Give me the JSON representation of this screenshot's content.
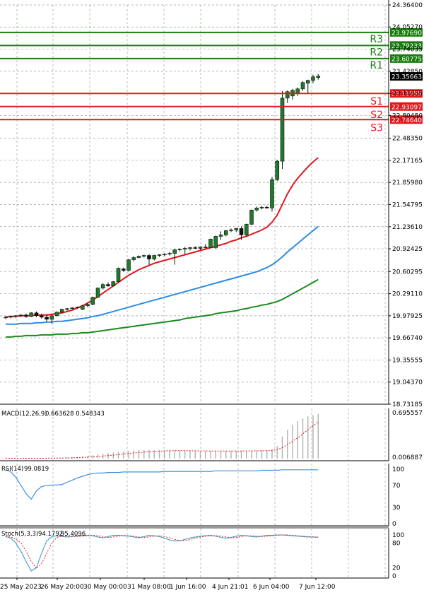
{
  "colors": {
    "bull": "#1f7a2e",
    "bear": "#111111",
    "ma_fast": "#e5161a",
    "ma_mid": "#2b8ce6",
    "ma_slow": "#1c8a1c",
    "support": "#e0191c",
    "resistance": "#1a7d10",
    "grid": "#9aa0a6",
    "macd_hist": "#b0b0b0",
    "macd_signal": "#e0191c",
    "rsi": "#3d8fe0",
    "stoch_main": "#3aa0c8",
    "stoch_signal": "#e0191c"
  },
  "chart_data": {
    "type": "candlestick",
    "price_axis": {
      "labels": [
        "24.36400",
        "24.05270",
        "23.74035",
        "23.42850",
        "23.11555",
        "22.80480",
        "22.48350",
        "22.17165",
        "21.85980",
        "21.54795",
        "21.23610",
        "20.92425",
        "20.60295",
        "20.29110",
        "19.97925",
        "19.66740",
        "19.35555",
        "19.04370",
        "18.73185"
      ],
      "ylim": [
        18.73185,
        24.364
      ]
    },
    "time_axis": {
      "labels": [
        "25 May 2023",
        "26 May 20:00",
        "30 May 00:00",
        "31 May 08:00",
        "1 Jun 16:00",
        "4 Jun 21:01",
        "6 Jun 04:00",
        "7 Jun 12:00"
      ]
    },
    "current_price": "23.35663",
    "levels": {
      "resistance": [
        {
          "name": "R3",
          "value": "23.97690"
        },
        {
          "name": "R2",
          "value": "23.79233"
        },
        {
          "name": "R1",
          "value": "23.60775"
        }
      ],
      "support": [
        {
          "name": "S1",
          "value": "23.11555"
        },
        {
          "name": "S2",
          "value": "22.93097"
        },
        {
          "name": "S3",
          "value": "22.74640"
        }
      ]
    },
    "candles": [
      [
        19.95,
        19.97,
        19.93,
        19.96
      ],
      [
        19.96,
        19.98,
        19.94,
        19.97
      ],
      [
        19.97,
        19.99,
        19.95,
        19.98
      ],
      [
        19.98,
        20.0,
        19.96,
        19.99
      ],
      [
        19.99,
        20.01,
        19.95,
        19.97
      ],
      [
        19.97,
        20.03,
        19.96,
        20.02
      ],
      [
        20.02,
        20.04,
        19.96,
        19.98
      ],
      [
        19.98,
        20.01,
        19.94,
        19.96
      ],
      [
        19.96,
        20.0,
        19.9,
        19.93
      ],
      [
        19.93,
        20.0,
        19.87,
        19.98
      ],
      [
        19.98,
        20.04,
        19.97,
        20.03
      ],
      [
        20.03,
        20.08,
        20.02,
        20.07
      ],
      [
        20.07,
        20.09,
        20.05,
        20.08
      ],
      [
        20.08,
        20.1,
        20.07,
        20.09
      ],
      [
        20.09,
        20.11,
        20.08,
        20.1
      ],
      [
        20.07,
        20.13,
        20.06,
        20.12
      ],
      [
        20.12,
        20.16,
        20.1,
        20.14
      ],
      [
        20.14,
        20.25,
        20.13,
        20.24
      ],
      [
        20.24,
        20.38,
        20.23,
        20.37
      ],
      [
        20.37,
        20.44,
        20.35,
        20.42
      ],
      [
        20.42,
        20.45,
        20.39,
        20.4
      ],
      [
        20.4,
        20.47,
        20.39,
        20.46
      ],
      [
        20.46,
        20.66,
        20.45,
        20.65
      ],
      [
        20.64,
        20.66,
        20.6,
        20.62
      ],
      [
        20.62,
        20.78,
        20.61,
        20.77
      ],
      [
        20.77,
        20.82,
        20.75,
        20.8
      ],
      [
        20.8,
        20.83,
        20.79,
        20.82
      ],
      [
        20.82,
        20.84,
        20.8,
        20.83
      ],
      [
        20.83,
        20.85,
        20.7,
        20.78
      ],
      [
        20.78,
        20.84,
        20.76,
        20.83
      ],
      [
        20.83,
        20.85,
        20.81,
        20.84
      ],
      [
        20.84,
        20.86,
        20.82,
        20.85
      ],
      [
        20.85,
        20.88,
        20.83,
        20.86
      ],
      [
        20.86,
        20.92,
        20.7,
        20.91
      ],
      [
        20.91,
        20.93,
        20.89,
        20.92
      ],
      [
        20.92,
        20.95,
        20.85,
        20.93
      ],
      [
        20.93,
        20.95,
        20.9,
        20.94
      ],
      [
        20.94,
        20.96,
        20.92,
        20.93
      ],
      [
        20.93,
        20.96,
        20.91,
        20.95
      ],
      [
        20.95,
        20.99,
        20.93,
        20.94
      ],
      [
        20.94,
        21.07,
        20.93,
        21.06
      ],
      [
        20.94,
        21.11,
        20.92,
        21.1
      ],
      [
        21.1,
        21.17,
        21.05,
        21.12
      ],
      [
        21.12,
        21.19,
        21.1,
        21.18
      ],
      [
        21.18,
        21.21,
        21.16,
        21.19
      ],
      [
        21.19,
        21.22,
        21.16,
        21.21
      ],
      [
        21.21,
        21.24,
        21.05,
        21.12
      ],
      [
        21.12,
        21.28,
        21.1,
        21.27
      ],
      [
        21.27,
        21.48,
        21.26,
        21.47
      ],
      [
        21.47,
        21.52,
        21.45,
        21.5
      ],
      [
        21.5,
        21.53,
        21.48,
        21.51
      ],
      [
        21.51,
        21.53,
        21.49,
        21.5
      ],
      [
        21.5,
        21.94,
        21.45,
        21.9
      ],
      [
        21.9,
        22.18,
        21.88,
        22.16
      ],
      [
        22.16,
        23.15,
        22.05,
        23.05
      ],
      [
        23.05,
        23.16,
        22.98,
        23.14
      ],
      [
        23.08,
        23.18,
        23.03,
        23.16
      ],
      [
        23.12,
        23.2,
        23.08,
        23.18
      ],
      [
        23.18,
        23.29,
        23.15,
        23.27
      ],
      [
        23.26,
        23.31,
        23.11,
        23.3
      ],
      [
        23.3,
        23.38,
        23.26,
        23.35
      ],
      [
        23.34,
        23.39,
        23.31,
        23.36
      ]
    ],
    "ma_fast": [
      19.96,
      19.97,
      19.97,
      19.98,
      19.98,
      19.98,
      19.99,
      19.99,
      19.99,
      20.0,
      20.01,
      20.02,
      20.04,
      20.06,
      20.09,
      20.12,
      20.16,
      20.2,
      20.25,
      20.3,
      20.35,
      20.4,
      20.45,
      20.5,
      20.55,
      20.59,
      20.63,
      20.66,
      20.69,
      20.72,
      20.74,
      20.76,
      20.78,
      20.8,
      20.82,
      20.84,
      20.86,
      20.88,
      20.9,
      20.92,
      20.94,
      20.96,
      20.98,
      21.0,
      21.03,
      21.05,
      21.08,
      21.1,
      21.13,
      21.16,
      21.19,
      21.23,
      21.3,
      21.4,
      21.55,
      21.7,
      21.82,
      21.92,
      22.0,
      22.08,
      22.15,
      22.21
    ],
    "ma_mid": [
      19.86,
      19.86,
      19.86,
      19.87,
      19.87,
      19.87,
      19.88,
      19.88,
      19.89,
      19.89,
      19.9,
      19.9,
      19.91,
      19.92,
      19.93,
      19.94,
      19.95,
      19.97,
      19.98,
      20.0,
      20.02,
      20.04,
      20.06,
      20.08,
      20.1,
      20.12,
      20.14,
      20.16,
      20.18,
      20.2,
      20.22,
      20.24,
      20.26,
      20.28,
      20.3,
      20.32,
      20.34,
      20.36,
      20.38,
      20.4,
      20.42,
      20.44,
      20.46,
      20.48,
      20.5,
      20.52,
      20.54,
      20.56,
      20.58,
      20.6,
      20.63,
      20.66,
      20.7,
      20.75,
      20.81,
      20.88,
      20.94,
      21.0,
      21.06,
      21.12,
      21.18,
      21.24
    ],
    "ma_slow": [
      19.68,
      19.68,
      19.69,
      19.69,
      19.7,
      19.7,
      19.7,
      19.71,
      19.71,
      19.71,
      19.72,
      19.72,
      19.72,
      19.73,
      19.73,
      19.74,
      19.74,
      19.75,
      19.76,
      19.77,
      19.78,
      19.79,
      19.8,
      19.81,
      19.82,
      19.83,
      19.84,
      19.85,
      19.86,
      19.87,
      19.88,
      19.89,
      19.9,
      19.91,
      19.92,
      19.94,
      19.95,
      19.96,
      19.97,
      19.98,
      19.99,
      20.01,
      20.02,
      20.03,
      20.04,
      20.05,
      20.07,
      20.08,
      20.1,
      20.11,
      20.13,
      20.14,
      20.16,
      20.18,
      20.21,
      20.25,
      20.29,
      20.33,
      20.37,
      20.41,
      20.45,
      20.49
    ],
    "macd": {
      "label": "MACD(12,26,9)",
      "values_text": "0.663628 0.548343",
      "axis_labels": [
        "0.695557",
        "0.006887"
      ],
      "range": [
        0,
        0.695557
      ],
      "hist": [
        0.005,
        0.005,
        0.005,
        0.005,
        0.005,
        0.005,
        0.005,
        0.006,
        0.007,
        0.008,
        0.01,
        0.013,
        0.017,
        0.022,
        0.028,
        0.035,
        0.043,
        0.052,
        0.062,
        0.072,
        0.082,
        0.092,
        0.102,
        0.11,
        0.117,
        0.122,
        0.125,
        0.127,
        0.128,
        0.128,
        0.127,
        0.126,
        0.124,
        0.122,
        0.12,
        0.118,
        0.116,
        0.114,
        0.113,
        0.112,
        0.112,
        0.113,
        0.114,
        0.115,
        0.116,
        0.117,
        0.118,
        0.118,
        0.119,
        0.12,
        0.122,
        0.125,
        0.14,
        0.19,
        0.33,
        0.43,
        0.5,
        0.56,
        0.6,
        0.63,
        0.65,
        0.664
      ],
      "signal": [
        0.005,
        0.005,
        0.005,
        0.005,
        0.005,
        0.005,
        0.005,
        0.005,
        0.006,
        0.006,
        0.007,
        0.008,
        0.01,
        0.012,
        0.015,
        0.018,
        0.022,
        0.027,
        0.032,
        0.038,
        0.045,
        0.052,
        0.06,
        0.068,
        0.076,
        0.084,
        0.091,
        0.097,
        0.103,
        0.108,
        0.112,
        0.115,
        0.117,
        0.118,
        0.118,
        0.118,
        0.117,
        0.116,
        0.115,
        0.114,
        0.113,
        0.113,
        0.113,
        0.113,
        0.113,
        0.114,
        0.114,
        0.115,
        0.115,
        0.116,
        0.117,
        0.118,
        0.122,
        0.133,
        0.165,
        0.21,
        0.26,
        0.31,
        0.37,
        0.43,
        0.49,
        0.548
      ]
    },
    "rsi": {
      "label": "RSI(14)",
      "value": "99.0819",
      "axis_labels": [
        "100",
        "70",
        "30",
        "0"
      ],
      "values": [
        100,
        95,
        85,
        70,
        55,
        45,
        60,
        68,
        70,
        71,
        71,
        72,
        76,
        80,
        84,
        87,
        90,
        92,
        93,
        93,
        94,
        94,
        94,
        95,
        95,
        95,
        95,
        95,
        95,
        95,
        95,
        96,
        96,
        96,
        96,
        96,
        96,
        96,
        96,
        96,
        96,
        97,
        97,
        97,
        97,
        97,
        97,
        97,
        97,
        97,
        98,
        98,
        98,
        98,
        99,
        99,
        99,
        99,
        99,
        99,
        99,
        99
      ]
    },
    "stoch": {
      "label": "Stoch(5,3,3)",
      "value1": "94.1792",
      "value2": "95.4096",
      "axis_labels": [
        "100",
        "80",
        "20",
        "0"
      ],
      "main": [
        96,
        92,
        80,
        60,
        35,
        12,
        20,
        55,
        85,
        96,
        98,
        96,
        95,
        96,
        98,
        99,
        99,
        98,
        95,
        93,
        96,
        99,
        99,
        98,
        97,
        95,
        93,
        96,
        99,
        98,
        96,
        92,
        88,
        85,
        86,
        89,
        93,
        95,
        97,
        98,
        99,
        97,
        94,
        92,
        94,
        97,
        99,
        98,
        96,
        95,
        97,
        99,
        99,
        100,
        100,
        99,
        98,
        97,
        96,
        95,
        95,
        94
      ],
      "signal": [
        96,
        95,
        90,
        80,
        60,
        35,
        18,
        30,
        55,
        80,
        94,
        97,
        97,
        96,
        96,
        97,
        98,
        99,
        98,
        96,
        94,
        95,
        97,
        99,
        98,
        97,
        95,
        94,
        95,
        97,
        98,
        96,
        93,
        89,
        86,
        86,
        89,
        92,
        95,
        97,
        98,
        98,
        97,
        95,
        93,
        94,
        96,
        98,
        98,
        97,
        96,
        97,
        98,
        99,
        100,
        100,
        99,
        98,
        97,
        96,
        95,
        95
      ]
    }
  }
}
